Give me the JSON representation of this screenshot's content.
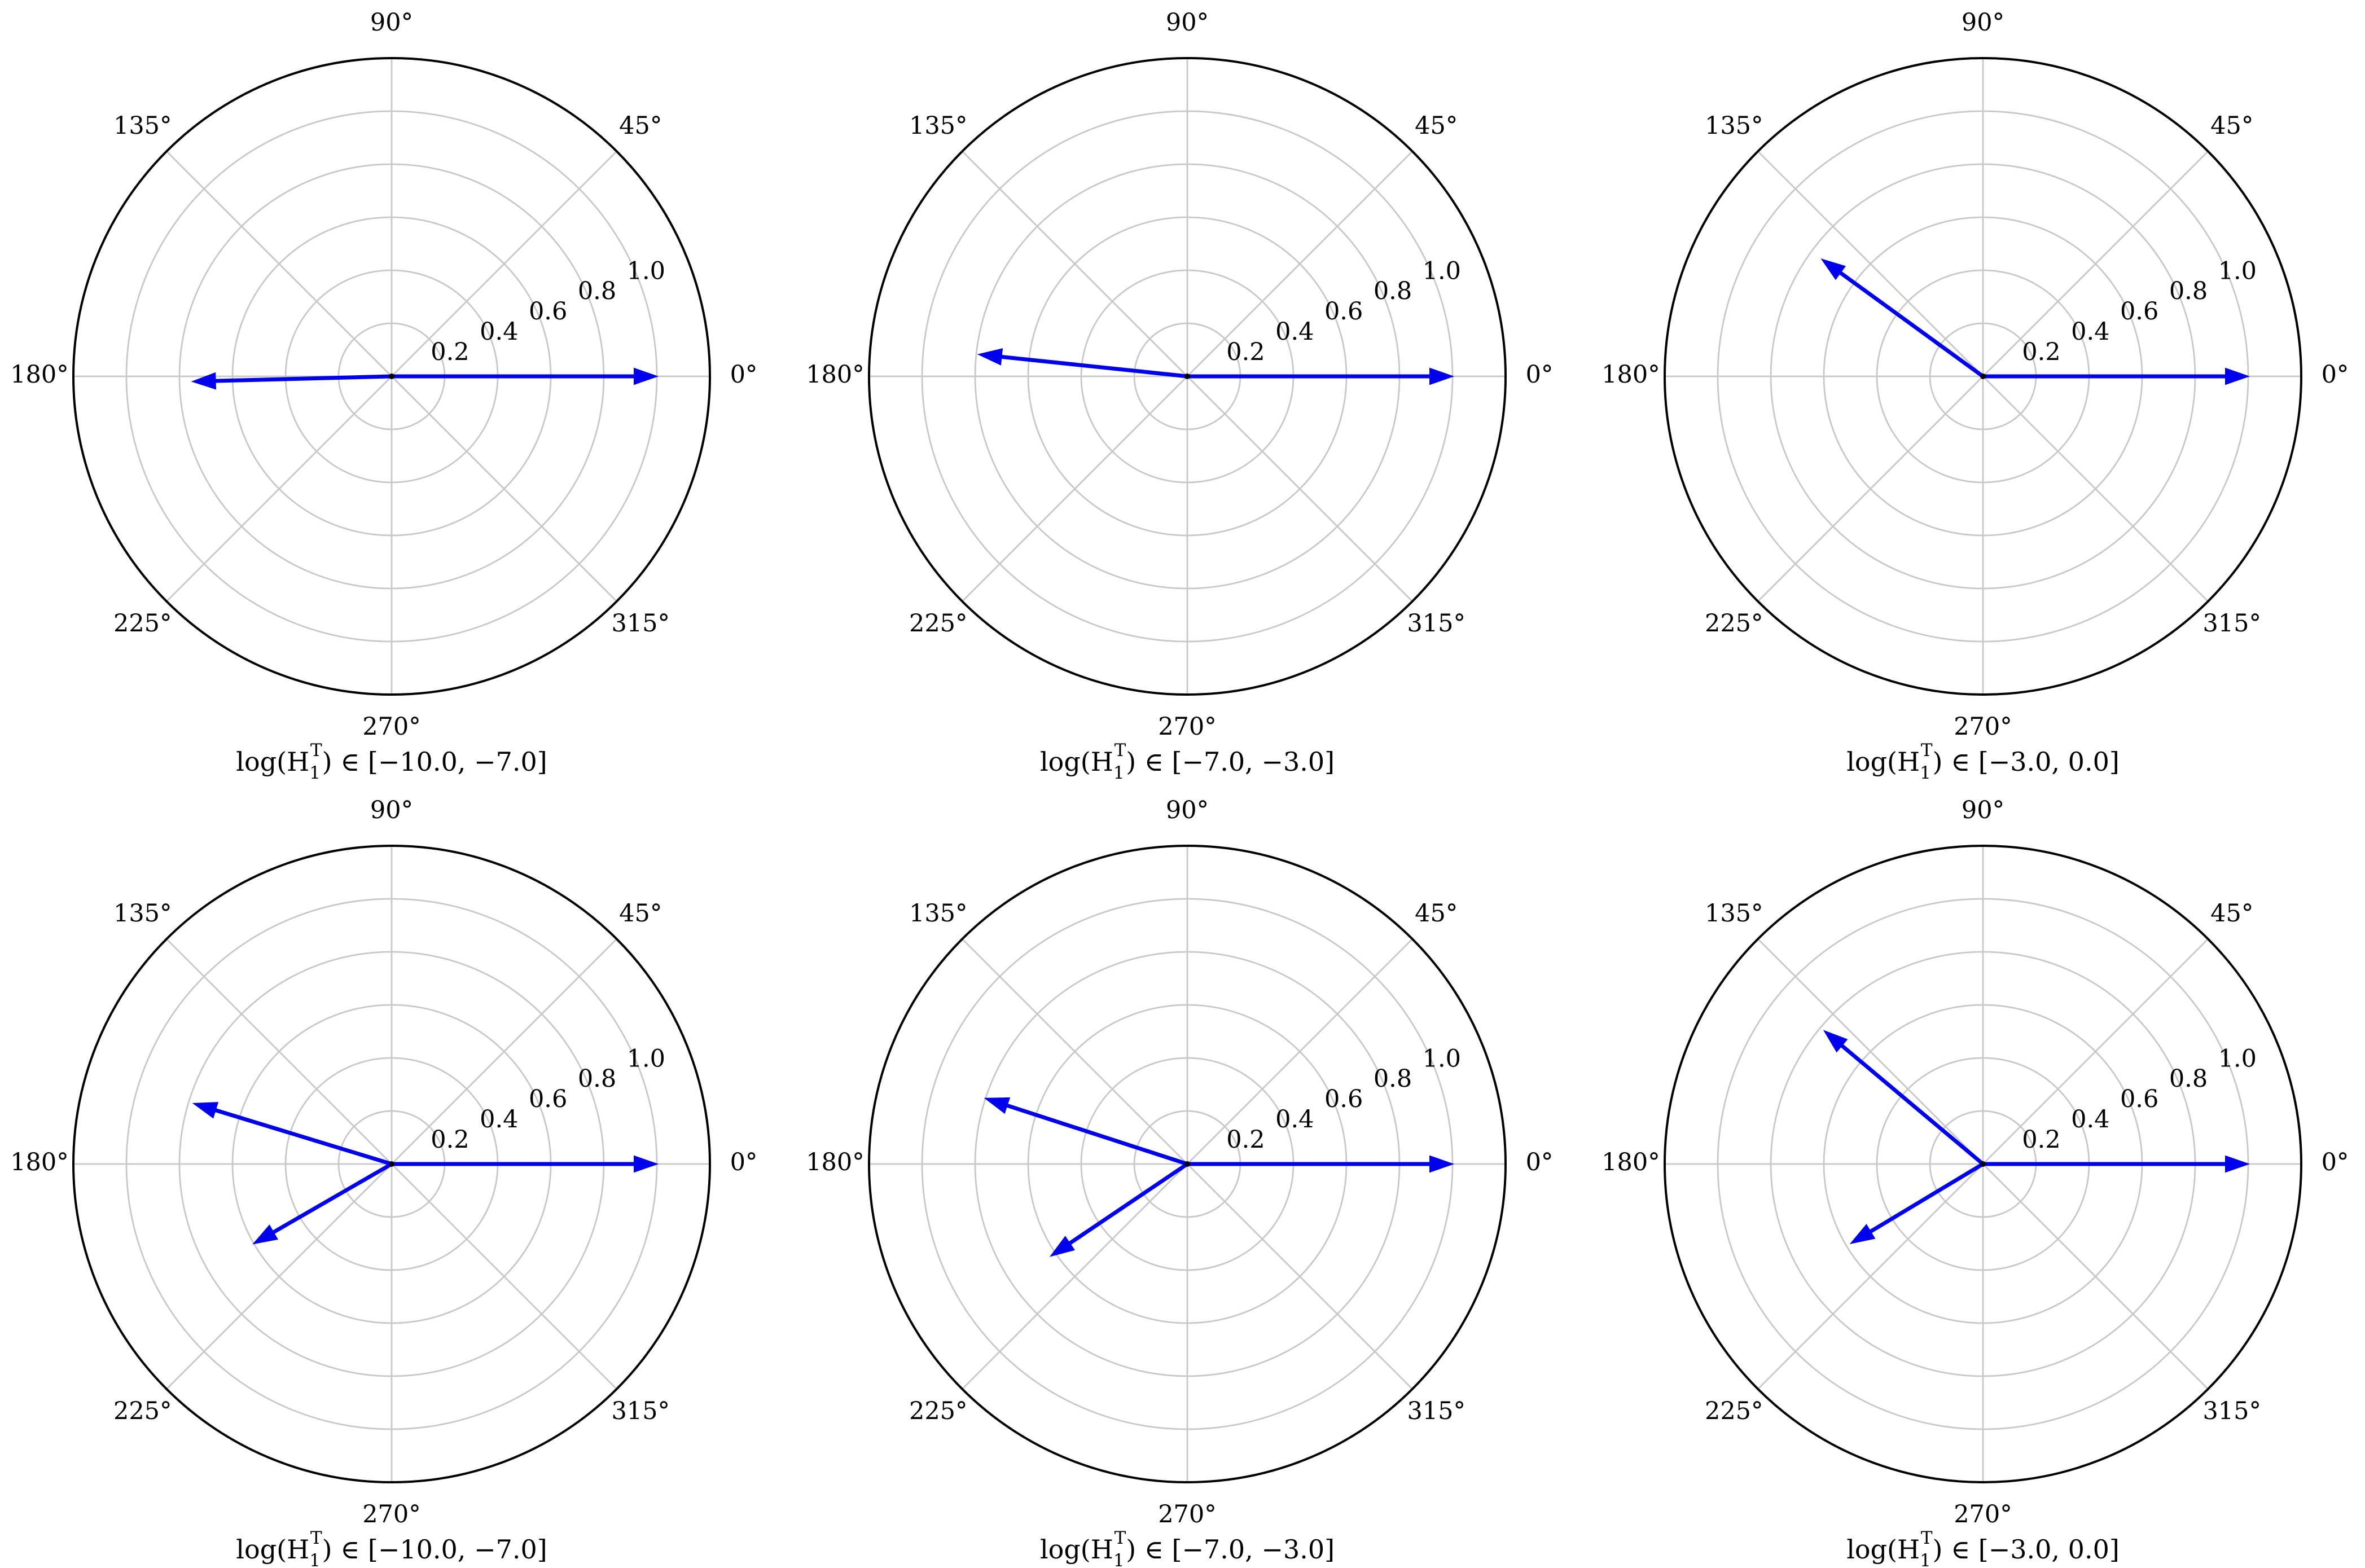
{
  "chart_data": [
    {
      "type": "polar-vector",
      "caption": {
        "prefix": "log(H",
        "sub": "1",
        "sup": "T",
        "suffix": ") ∈ [−10.0, −7.0]"
      },
      "r_ticks": [
        "0.2",
        "0.4",
        "0.6",
        "0.8",
        "1.0"
      ],
      "theta_ticks": [
        "0°",
        "45°",
        "90°",
        "135°",
        "180°",
        "225°",
        "270°",
        "315°"
      ],
      "rlim": [
        0,
        1.2
      ],
      "grid": true,
      "vectors": [
        {
          "angle_deg": 0,
          "length": 1.0
        },
        {
          "angle_deg": 181.5,
          "length": 0.75
        }
      ]
    },
    {
      "type": "polar-vector",
      "caption": {
        "prefix": "log(H",
        "sub": "1",
        "sup": "T",
        "suffix": ") ∈ [−7.0, −3.0]"
      },
      "r_ticks": [
        "0.2",
        "0.4",
        "0.6",
        "0.8",
        "1.0"
      ],
      "theta_ticks": [
        "0°",
        "45°",
        "90°",
        "135°",
        "180°",
        "225°",
        "270°",
        "315°"
      ],
      "rlim": [
        0,
        1.2
      ],
      "grid": true,
      "vectors": [
        {
          "angle_deg": 0,
          "length": 1.0
        },
        {
          "angle_deg": 174,
          "length": 0.79
        }
      ]
    },
    {
      "type": "polar-vector",
      "caption": {
        "prefix": "log(H",
        "sub": "1",
        "sup": "T",
        "suffix": ") ∈ [−3.0, 0.0]"
      },
      "r_ticks": [
        "0.2",
        "0.4",
        "0.6",
        "0.8",
        "1.0"
      ],
      "theta_ticks": [
        "0°",
        "45°",
        "90°",
        "135°",
        "180°",
        "225°",
        "270°",
        "315°"
      ],
      "rlim": [
        0,
        1.2
      ],
      "grid": true,
      "vectors": [
        {
          "angle_deg": 0,
          "length": 1.0
        },
        {
          "angle_deg": 144,
          "length": 0.75
        }
      ]
    },
    {
      "type": "polar-vector",
      "caption": {
        "prefix": "log(H",
        "sub": "1",
        "sup": "T",
        "suffix": ") ∈ [−10.0, −7.0]"
      },
      "r_ticks": [
        "0.2",
        "0.4",
        "0.6",
        "0.8",
        "1.0"
      ],
      "theta_ticks": [
        "0°",
        "45°",
        "90°",
        "135°",
        "180°",
        "225°",
        "270°",
        "315°"
      ],
      "rlim": [
        0,
        1.2
      ],
      "grid": true,
      "vectors": [
        {
          "angle_deg": 0,
          "length": 1.0
        },
        {
          "angle_deg": 163,
          "length": 0.78
        },
        {
          "angle_deg": 210,
          "length": 0.6
        }
      ]
    },
    {
      "type": "polar-vector",
      "caption": {
        "prefix": "log(H",
        "sub": "1",
        "sup": "T",
        "suffix": ") ∈ [−7.0, −3.0]"
      },
      "r_ticks": [
        "0.2",
        "0.4",
        "0.6",
        "0.8",
        "1.0"
      ],
      "theta_ticks": [
        "0°",
        "45°",
        "90°",
        "135°",
        "180°",
        "225°",
        "270°",
        "315°"
      ],
      "rlim": [
        0,
        1.2
      ],
      "grid": true,
      "vectors": [
        {
          "angle_deg": 0,
          "length": 1.0
        },
        {
          "angle_deg": 162,
          "length": 0.8
        },
        {
          "angle_deg": 214,
          "length": 0.62
        }
      ]
    },
    {
      "type": "polar-vector",
      "caption": {
        "prefix": "log(H",
        "sub": "1",
        "sup": "T",
        "suffix": ") ∈ [−3.0, 0.0]"
      },
      "r_ticks": [
        "0.2",
        "0.4",
        "0.6",
        "0.8",
        "1.0"
      ],
      "theta_ticks": [
        "0°",
        "45°",
        "90°",
        "135°",
        "180°",
        "225°",
        "270°",
        "315°"
      ],
      "rlim": [
        0,
        1.2
      ],
      "grid": true,
      "vectors": [
        {
          "angle_deg": 0,
          "length": 1.0
        },
        {
          "angle_deg": 140,
          "length": 0.78
        },
        {
          "angle_deg": 211,
          "length": 0.58
        }
      ]
    }
  ],
  "colors": {
    "vector": "#0000ee",
    "grid": "#c8c8c8",
    "frame": "#000000"
  }
}
